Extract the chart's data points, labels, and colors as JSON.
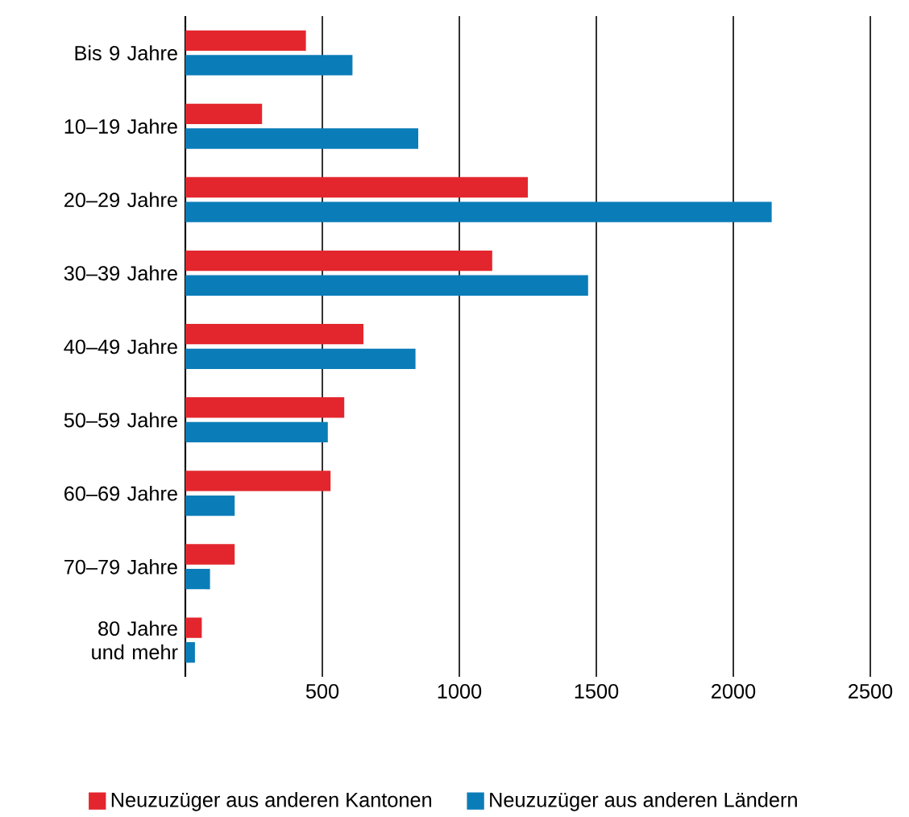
{
  "chart_data": {
    "type": "bar",
    "orientation": "horizontal",
    "categories": [
      "Bis 9 Jahre",
      "10–19 Jahre",
      "20–29 Jahre",
      "30–39 Jahre",
      "40–49 Jahre",
      "50–59 Jahre",
      "60–69 Jahre",
      "70–79 Jahre",
      "80 Jahre und mehr"
    ],
    "series": [
      {
        "name": "Neuzuzüger aus anderen Kantonen",
        "color": "#e3262d",
        "values": [
          440,
          280,
          1250,
          1120,
          650,
          580,
          530,
          180,
          60
        ]
      },
      {
        "name": "Neuzuzüger aus anderen Ländern",
        "color": "#0a7db8",
        "values": [
          610,
          850,
          2140,
          1470,
          840,
          520,
          180,
          90,
          35
        ]
      }
    ],
    "xlim": [
      0,
      2500
    ],
    "xticks": [
      500,
      1000,
      1500,
      2000,
      2500
    ],
    "grid": "x",
    "legend": "bottom"
  }
}
